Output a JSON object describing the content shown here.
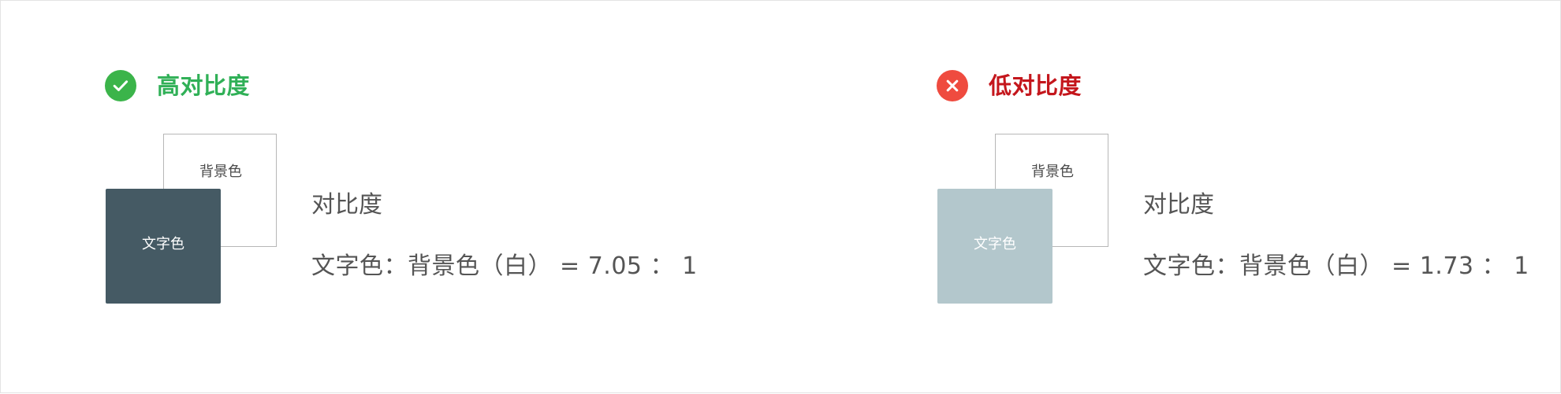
{
  "examples": [
    {
      "status_icon": "check-circle-icon",
      "title": "高对比度",
      "title_color": "#30b057",
      "icon_color": "#3bb44a",
      "text_color_label": "文字色",
      "text_color_swatch": "#455a64",
      "background_label": "背景色",
      "metric_label": "对比度",
      "ratio_text": "文字色：背景色（白） = 7.05 ： 1"
    },
    {
      "status_icon": "close-circle-icon",
      "title": "低对比度",
      "title_color": "#c4161c",
      "icon_color": "#ef4b3f",
      "text_color_label": "文字色",
      "text_color_swatch": "#b3c7cc",
      "background_label": "背景色",
      "metric_label": "对比度",
      "ratio_text": "文字色：背景色（白） = 1.73 ： 1"
    }
  ]
}
